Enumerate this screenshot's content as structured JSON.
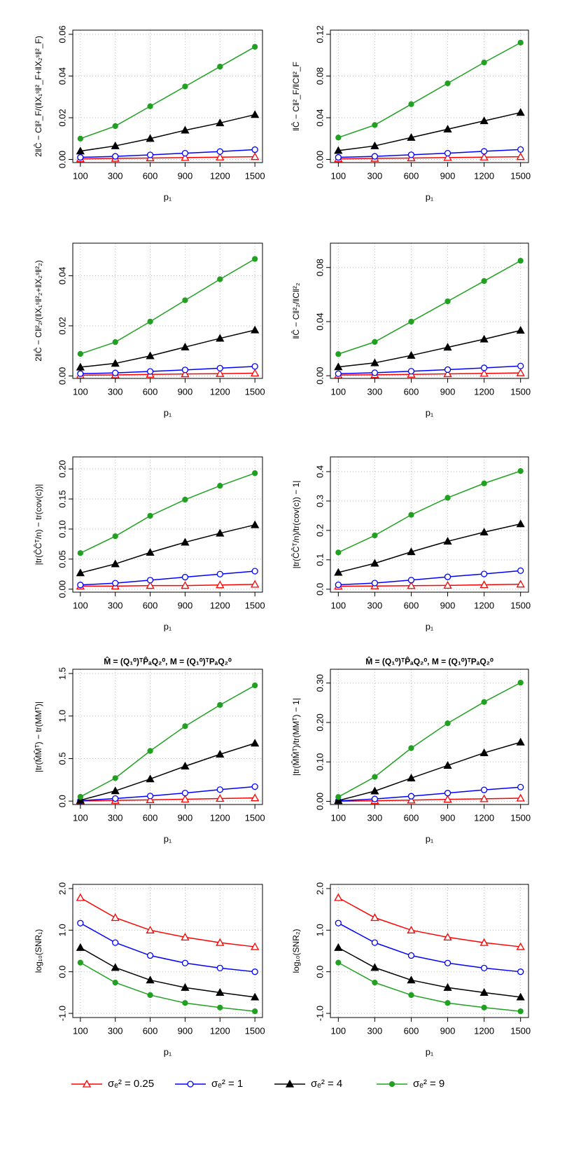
{
  "chart_data": [
    {
      "type": "line",
      "ylabel": "2‖Ĉ − C‖²_F/(‖X₁ˢ‖²_F+‖X₂ˢ‖²_F)",
      "xlabel": "p₁",
      "categories": [
        "100",
        "300",
        "600",
        "900",
        "1200",
        "1500"
      ],
      "ylim": [
        -0.0015,
        0.062
      ],
      "yticks": [
        {
          "value": 0,
          "label": "0.00"
        },
        {
          "value": 0.02,
          "label": "0.02"
        },
        {
          "value": 0.04,
          "label": "0.04"
        },
        {
          "value": 0.06,
          "label": "0.06"
        }
      ],
      "grid": true,
      "series": [
        {
          "name": "σₑ² = 0.25",
          "color": "#ff0000",
          "marker": "open-triangle",
          "values": [
            0.0003,
            0.0005,
            0.0007,
            0.0009,
            0.0011,
            0.0013
          ]
        },
        {
          "name": "σₑ² = 1",
          "color": "#0000ff",
          "marker": "open-circle",
          "values": [
            0.001,
            0.0015,
            0.0022,
            0.003,
            0.0038,
            0.0047
          ]
        },
        {
          "name": "σₑ² = 4",
          "color": "#000000",
          "marker": "filled-triangle",
          "values": [
            0.004,
            0.0065,
            0.01,
            0.014,
            0.0175,
            0.0215
          ]
        },
        {
          "name": "σₑ² = 9",
          "color": "#22a022",
          "marker": "filled-circle",
          "values": [
            0.01,
            0.016,
            0.0255,
            0.035,
            0.0445,
            0.054
          ]
        }
      ]
    },
    {
      "type": "line",
      "ylabel": "‖Ĉ − C‖²_F/‖C‖²_F",
      "xlabel": "p₁",
      "categories": [
        "100",
        "300",
        "600",
        "900",
        "1200",
        "1500"
      ],
      "ylim": [
        -0.003,
        0.124
      ],
      "yticks": [
        {
          "value": 0,
          "label": "0.00"
        },
        {
          "value": 0.04,
          "label": "0.04"
        },
        {
          "value": 0.08,
          "label": "0.08"
        },
        {
          "value": 0.12,
          "label": "0.12"
        }
      ],
      "grid": true,
      "series": [
        {
          "name": "σₑ² = 0.25",
          "color": "#ff0000",
          "marker": "open-triangle",
          "values": [
            0.0006,
            0.001,
            0.0014,
            0.0018,
            0.0022,
            0.0026
          ]
        },
        {
          "name": "σₑ² = 1",
          "color": "#0000ff",
          "marker": "open-circle",
          "values": [
            0.002,
            0.003,
            0.0045,
            0.006,
            0.0078,
            0.0095
          ]
        },
        {
          "name": "σₑ² = 4",
          "color": "#000000",
          "marker": "filled-triangle",
          "values": [
            0.0085,
            0.013,
            0.021,
            0.029,
            0.037,
            0.045
          ]
        },
        {
          "name": "σₑ² = 9",
          "color": "#22a022",
          "marker": "filled-circle",
          "values": [
            0.021,
            0.033,
            0.053,
            0.073,
            0.093,
            0.112
          ]
        }
      ]
    },
    {
      "type": "line",
      "ylabel": "2‖Ĉ − C‖²₂/(‖X₁ˢ‖²₂+‖X₂ˢ‖²₂)",
      "xlabel": "p₁",
      "categories": [
        "100",
        "300",
        "600",
        "900",
        "1200",
        "1500"
      ],
      "ylim": [
        -0.001,
        0.053
      ],
      "yticks": [
        {
          "value": 0,
          "label": "0.00"
        },
        {
          "value": 0.02,
          "label": "0.02"
        },
        {
          "value": 0.04,
          "label": "0.04"
        }
      ],
      "grid": true,
      "series": [
        {
          "name": "σₑ² = 0.25",
          "color": "#ff0000",
          "marker": "open-triangle",
          "values": [
            0.0003,
            0.0004,
            0.0006,
            0.0008,
            0.0009,
            0.0011
          ]
        },
        {
          "name": "σₑ² = 1",
          "color": "#0000ff",
          "marker": "open-circle",
          "values": [
            0.0009,
            0.0012,
            0.0018,
            0.0024,
            0.0031,
            0.0038
          ]
        },
        {
          "name": "σₑ² = 4",
          "color": "#000000",
          "marker": "filled-triangle",
          "values": [
            0.0035,
            0.005,
            0.008,
            0.0115,
            0.015,
            0.0183
          ]
        },
        {
          "name": "σₑ² = 9",
          "color": "#22a022",
          "marker": "filled-circle",
          "values": [
            0.0088,
            0.0135,
            0.0217,
            0.0302,
            0.0386,
            0.0467
          ]
        }
      ]
    },
    {
      "type": "line",
      "ylabel": "‖Ĉ − C‖²₂/‖C‖²₂",
      "xlabel": "p₁",
      "categories": [
        "100",
        "300",
        "600",
        "900",
        "1200",
        "1500"
      ],
      "ylim": [
        -0.002,
        0.098
      ],
      "yticks": [
        {
          "value": 0,
          "label": "0.00"
        },
        {
          "value": 0.04,
          "label": "0.04"
        },
        {
          "value": 0.08,
          "label": "0.08"
        }
      ],
      "grid": true,
      "series": [
        {
          "name": "σₑ² = 0.25",
          "color": "#ff0000",
          "marker": "open-triangle",
          "values": [
            0.0005,
            0.0007,
            0.001,
            0.0014,
            0.0017,
            0.0021
          ]
        },
        {
          "name": "σₑ² = 1",
          "color": "#0000ff",
          "marker": "open-circle",
          "values": [
            0.0015,
            0.0022,
            0.0033,
            0.0045,
            0.0058,
            0.0072
          ]
        },
        {
          "name": "σₑ² = 4",
          "color": "#000000",
          "marker": "filled-triangle",
          "values": [
            0.0065,
            0.0095,
            0.015,
            0.021,
            0.027,
            0.0335
          ]
        },
        {
          "name": "σₑ² = 9",
          "color": "#22a022",
          "marker": "filled-circle",
          "values": [
            0.016,
            0.025,
            0.04,
            0.055,
            0.07,
            0.085
          ]
        }
      ]
    },
    {
      "type": "line",
      "ylabel": "|tr(ĈĈᵀ/n) − tr(cov(c))|",
      "xlabel": "p₁",
      "categories": [
        "100",
        "300",
        "600",
        "900",
        "1200",
        "1500"
      ],
      "ylim": [
        -0.005,
        0.22
      ],
      "yticks": [
        {
          "value": 0,
          "label": "0.00"
        },
        {
          "value": 0.05,
          "label": "0.05"
        },
        {
          "value": 0.1,
          "label": "0.10"
        },
        {
          "value": 0.15,
          "label": "0.15"
        },
        {
          "value": 0.2,
          "label": "0.20"
        }
      ],
      "grid": true,
      "series": [
        {
          "name": "σₑ² = 0.25",
          "color": "#ff0000",
          "marker": "open-triangle",
          "values": [
            0.005,
            0.005,
            0.006,
            0.006,
            0.007,
            0.008
          ]
        },
        {
          "name": "σₑ² = 1",
          "color": "#0000ff",
          "marker": "open-circle",
          "values": [
            0.007,
            0.01,
            0.015,
            0.02,
            0.025,
            0.03
          ]
        },
        {
          "name": "σₑ² = 4",
          "color": "#000000",
          "marker": "filled-triangle",
          "values": [
            0.027,
            0.042,
            0.061,
            0.078,
            0.093,
            0.107
          ]
        },
        {
          "name": "σₑ² = 9",
          "color": "#22a022",
          "marker": "filled-circle",
          "values": [
            0.06,
            0.088,
            0.122,
            0.149,
            0.172,
            0.193
          ]
        }
      ]
    },
    {
      "type": "line",
      "ylabel": "|tr(ĈĈᵀ/n)/tr(cov(c)) − 1|",
      "xlabel": "p₁",
      "categories": [
        "100",
        "300",
        "600",
        "900",
        "1200",
        "1500"
      ],
      "ylim": [
        -0.01,
        0.45
      ],
      "yticks": [
        {
          "value": 0,
          "label": "0.0"
        },
        {
          "value": 0.1,
          "label": "0.1"
        },
        {
          "value": 0.2,
          "label": "0.2"
        },
        {
          "value": 0.3,
          "label": "0.3"
        },
        {
          "value": 0.4,
          "label": "0.4"
        }
      ],
      "grid": true,
      "series": [
        {
          "name": "σₑ² = 0.25",
          "color": "#ff0000",
          "marker": "open-triangle",
          "values": [
            0.01,
            0.011,
            0.012,
            0.013,
            0.015,
            0.017
          ]
        },
        {
          "name": "σₑ² = 1",
          "color": "#0000ff",
          "marker": "open-circle",
          "values": [
            0.015,
            0.021,
            0.031,
            0.042,
            0.052,
            0.063
          ]
        },
        {
          "name": "σₑ² = 4",
          "color": "#000000",
          "marker": "filled-triangle",
          "values": [
            0.057,
            0.088,
            0.127,
            0.163,
            0.194,
            0.222
          ]
        },
        {
          "name": "σₑ² = 9",
          "color": "#22a022",
          "marker": "filled-circle",
          "values": [
            0.125,
            0.183,
            0.253,
            0.311,
            0.36,
            0.402
          ]
        }
      ]
    },
    {
      "type": "line",
      "title": "M̂ = (Q₁⁰)ᵀP̂ₐQ₂⁰,  M = (Q₁⁰)ᵀPₐQ₂⁰",
      "ylabel": "|tr(M̂M̂ᵀ) − tr(MMᵀ)|",
      "xlabel": "p₁",
      "categories": [
        "100",
        "300",
        "600",
        "900",
        "1200",
        "1500"
      ],
      "ylim": [
        -0.04,
        1.55
      ],
      "yticks": [
        {
          "value": 0,
          "label": "0.0"
        },
        {
          "value": 0.5,
          "label": "0.5"
        },
        {
          "value": 1,
          "label": "1.0"
        },
        {
          "value": 1.5,
          "label": "1.5"
        }
      ],
      "grid": true,
      "series": [
        {
          "name": "σₑ² = 0.25",
          "color": "#ff0000",
          "marker": "open-triangle",
          "values": [
            0.001,
            0.008,
            0.015,
            0.022,
            0.03,
            0.037
          ]
        },
        {
          "name": "σₑ² = 1",
          "color": "#0000ff",
          "marker": "open-circle",
          "values": [
            0.005,
            0.03,
            0.06,
            0.095,
            0.135,
            0.17
          ]
        },
        {
          "name": "σₑ² = 4",
          "color": "#000000",
          "marker": "filled-triangle",
          "values": [
            0.01,
            0.12,
            0.26,
            0.41,
            0.55,
            0.68
          ]
        },
        {
          "name": "σₑ² = 9",
          "color": "#22a022",
          "marker": "filled-circle",
          "values": [
            0.05,
            0.27,
            0.59,
            0.88,
            1.13,
            1.36
          ]
        }
      ]
    },
    {
      "type": "line",
      "title": "M̂ = (Q₁⁰)ᵀP̂ₐQ₂⁰,  M = (Q₁⁰)ᵀPₐQ₂⁰",
      "ylabel": "|tr(M̂M̂ᵀ)/tr(MMᵀ) − 1|",
      "xlabel": "p₁",
      "categories": [
        "100",
        "300",
        "600",
        "900",
        "1200",
        "1500"
      ],
      "ylim": [
        -0.008,
        0.335
      ],
      "yticks": [
        {
          "value": 0,
          "label": "0.00"
        },
        {
          "value": 0.1,
          "label": "0.10"
        },
        {
          "value": 0.2,
          "label": "0.20"
        },
        {
          "value": 0.3,
          "label": "0.30"
        }
      ],
      "grid": true,
      "series": [
        {
          "name": "σₑ² = 0.25",
          "color": "#ff0000",
          "marker": "open-triangle",
          "values": [
            0.0002,
            0.0015,
            0.003,
            0.005,
            0.0065,
            0.008
          ]
        },
        {
          "name": "σₑ² = 1",
          "color": "#0000ff",
          "marker": "open-circle",
          "values": [
            0.001,
            0.006,
            0.013,
            0.021,
            0.029,
            0.036
          ]
        },
        {
          "name": "σₑ² = 4",
          "color": "#000000",
          "marker": "filled-triangle",
          "values": [
            0.002,
            0.026,
            0.059,
            0.091,
            0.123,
            0.15
          ]
        },
        {
          "name": "σₑ² = 9",
          "color": "#22a022",
          "marker": "filled-circle",
          "values": [
            0.011,
            0.062,
            0.135,
            0.198,
            0.252,
            0.301
          ]
        }
      ]
    },
    {
      "type": "line",
      "ylabel": "log₁₀(SNR₁)",
      "xlabel": "p₁",
      "categories": [
        "100",
        "300",
        "600",
        "900",
        "1200",
        "1500"
      ],
      "ylim": [
        -1.1,
        2.1
      ],
      "yticks": [
        {
          "value": -1,
          "label": "-1.0"
        },
        {
          "value": 0,
          "label": "0.0"
        },
        {
          "value": 1,
          "label": "1.0"
        },
        {
          "value": 2,
          "label": "2.0"
        }
      ],
      "grid": true,
      "series": [
        {
          "name": "σₑ² = 0.25",
          "color": "#ff0000",
          "marker": "open-triangle",
          "values": [
            1.78,
            1.3,
            1.0,
            0.83,
            0.7,
            0.6
          ]
        },
        {
          "name": "σₑ² = 1",
          "color": "#0000ff",
          "marker": "open-circle",
          "values": [
            1.17,
            0.7,
            0.39,
            0.21,
            0.09,
            0.0
          ]
        },
        {
          "name": "σₑ² = 4",
          "color": "#000000",
          "marker": "filled-triangle",
          "values": [
            0.58,
            0.1,
            -0.2,
            -0.38,
            -0.5,
            -0.61
          ]
        },
        {
          "name": "σₑ² = 9",
          "color": "#22a022",
          "marker": "filled-circle",
          "values": [
            0.22,
            -0.26,
            -0.56,
            -0.75,
            -0.86,
            -0.95
          ]
        }
      ]
    },
    {
      "type": "line",
      "ylabel": "log₁₀(SNR₂)",
      "xlabel": "p₁",
      "categories": [
        "100",
        "300",
        "600",
        "900",
        "1200",
        "1500"
      ],
      "ylim": [
        -1.1,
        2.1
      ],
      "yticks": [
        {
          "value": -1,
          "label": "-1.0"
        },
        {
          "value": 0,
          "label": "0.0"
        },
        {
          "value": 1,
          "label": "1.0"
        },
        {
          "value": 2,
          "label": "2.0"
        }
      ],
      "grid": true,
      "series": [
        {
          "name": "σₑ² = 0.25",
          "color": "#ff0000",
          "marker": "open-triangle",
          "values": [
            1.78,
            1.3,
            1.0,
            0.83,
            0.7,
            0.6
          ]
        },
        {
          "name": "σₑ² = 1",
          "color": "#0000ff",
          "marker": "open-circle",
          "values": [
            1.17,
            0.7,
            0.39,
            0.21,
            0.09,
            0.0
          ]
        },
        {
          "name": "σₑ² = 4",
          "color": "#000000",
          "marker": "filled-triangle",
          "values": [
            0.58,
            0.1,
            -0.2,
            -0.38,
            -0.5,
            -0.61
          ]
        },
        {
          "name": "σₑ² = 9",
          "color": "#22a022",
          "marker": "filled-circle",
          "values": [
            0.22,
            -0.26,
            -0.56,
            -0.75,
            -0.86,
            -0.95
          ]
        }
      ]
    }
  ]
}
